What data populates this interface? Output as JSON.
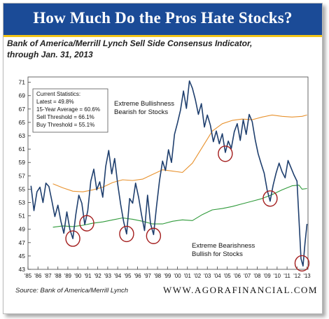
{
  "banner": {
    "title": "How Much Do the Pros Hate Stocks?"
  },
  "subtitle": {
    "line1": "Bank of America/Merrill Lynch Sell Side Consensus Indicator,",
    "line2": "through Jan. 31, 2013"
  },
  "stats_box": {
    "lines": [
      "Current Statistics:",
      "Latest = 49.8%",
      "15-Year Average = 60.6%",
      "Sell Threshold = 66.1%",
      "Buy Threshold = 55.1%"
    ]
  },
  "annotations": {
    "bull_line1": "Extreme Bullishness",
    "bull_line2": "Bearish for Stocks",
    "bear_line1": "Extreme Bearishness",
    "bear_line2": "Bullish for Stocks"
  },
  "footer": {
    "source": "Source: Bank of America/Merrill Lynch",
    "site": "WWW.AGORAFINANCIAL.COM"
  },
  "colors": {
    "banner": "#1b4b97",
    "banner_rule": "#f2c418",
    "indicator": "#1f3f6e",
    "sell_threshold": "#e8922e",
    "buy_threshold": "#2f9a3a",
    "circles": "#a31d1d"
  },
  "chart_data": {
    "type": "line",
    "x_tick_labels": [
      "'85",
      "'86",
      "'87",
      "'88",
      "'89",
      "'90",
      "'91",
      "'92",
      "'93",
      "'94",
      "'95",
      "'96",
      "'97",
      "'98",
      "'99",
      "'00",
      "'01",
      "'02",
      "'03",
      "'04",
      "'05",
      "'06",
      "'07",
      "'08",
      "'09",
      "'10",
      "'11",
      "'12",
      "'13"
    ],
    "y_ticks": [
      43,
      45,
      47,
      49,
      51,
      53,
      55,
      57,
      59,
      61,
      63,
      65,
      67,
      69,
      71
    ],
    "xlim": [
      1985,
      2013.1
    ],
    "ylim": [
      43,
      71.8
    ],
    "grid": false,
    "series": [
      {
        "x": [
          1985.3,
          1985.6,
          1985.9,
          1986.2,
          1986.5,
          1986.8,
          1987.1,
          1987.4,
          1987.7,
          1988.0,
          1988.3,
          1988.6,
          1988.9,
          1989.2,
          1989.5,
          1989.8,
          1990.1,
          1990.4,
          1990.7,
          1991.0,
          1991.3,
          1991.6,
          1991.9,
          1992.2,
          1992.5,
          1992.8,
          1993.1,
          1993.4,
          1993.7,
          1994.0,
          1994.3,
          1994.6,
          1994.9,
          1995.2,
          1995.5,
          1995.8,
          1996.1,
          1996.4,
          1996.7,
          1997.0,
          1997.3,
          1997.6,
          1997.9,
          1998.2,
          1998.5,
          1998.8,
          1999.1,
          1999.4,
          1999.7,
          2000.0,
          2000.3,
          2000.6,
          2000.9,
          2001.2,
          2001.5,
          2001.8,
          2002.1,
          2002.4,
          2002.7,
          2003.0,
          2003.3,
          2003.6,
          2003.9,
          2004.2,
          2004.5,
          2004.8,
          2005.1,
          2005.4,
          2005.7,
          2006.0,
          2006.3,
          2006.6,
          2006.9,
          2007.2,
          2007.5,
          2007.8,
          2008.1,
          2008.4,
          2008.7,
          2009.0,
          2009.3,
          2009.6,
          2009.9,
          2010.2,
          2010.5,
          2010.8,
          2011.1,
          2011.4,
          2011.7,
          2012.0,
          2012.2,
          2012.4,
          2012.6,
          2012.8,
          2013.0
        ],
        "values": [
          55.5,
          51.8,
          54.6,
          55.3,
          53.0,
          55.9,
          55.4,
          53.2,
          50.9,
          52.6,
          50.2,
          48.4,
          51.6,
          49.0,
          47.6,
          51.2,
          54.1,
          52.9,
          49.7,
          51.8,
          56.2,
          58.0,
          54.9,
          56.1,
          53.8,
          58.4,
          60.8,
          57.3,
          59.6,
          55.8,
          52.7,
          50.1,
          48.3,
          53.6,
          52.9,
          55.9,
          53.8,
          51.1,
          48.8,
          54.1,
          49.8,
          48.2,
          52.4,
          56.3,
          59.2,
          57.8,
          60.9,
          59.0,
          63.2,
          64.9,
          66.8,
          69.7,
          67.1,
          71.2,
          70.1,
          68.4,
          66.2,
          67.8,
          64.3,
          66.1,
          64.6,
          62.1,
          63.7,
          61.8,
          63.3,
          60.5,
          62.2,
          61.1,
          63.6,
          64.8,
          62.3,
          65.4,
          63.2,
          66.2,
          65.1,
          62.4,
          60.3,
          58.8,
          57.4,
          54.9,
          53.2,
          55.6,
          57.4,
          58.9,
          57.6,
          56.7,
          59.3,
          58.2,
          57.1,
          56.2,
          50.3,
          44.6,
          43.5,
          46.9,
          49.8
        ]
      },
      {
        "x": [
          1987.5,
          1988.5,
          1989.5,
          1990.5,
          1991.5,
          1992.5,
          1993.5,
          1994.5,
          1995.5,
          1996.5,
          1997.5,
          1998.5,
          1999.5,
          2000.5,
          2001.5,
          2002.5,
          2003.5,
          2004.5,
          2005.5,
          2006.5,
          2007.5,
          2008.5,
          2009.5,
          2010.5,
          2011.5,
          2012.5,
          2013.0
        ],
        "values": [
          55.8,
          55.2,
          54.7,
          54.6,
          54.9,
          55.3,
          56.0,
          56.4,
          56.3,
          56.5,
          57.2,
          57.9,
          57.7,
          57.5,
          58.9,
          61.3,
          63.7,
          64.8,
          65.3,
          65.5,
          65.4,
          65.8,
          66.1,
          65.9,
          65.8,
          65.9,
          66.1
        ]
      },
      {
        "x": [
          1987.5,
          1988.5,
          1989.5,
          1990.5,
          1991.5,
          1992.5,
          1993.5,
          1994.5,
          1995.5,
          1996.5,
          1997.5,
          1998.5,
          1999.5,
          2000.5,
          2001.5,
          2002.5,
          2003.5,
          2004.5,
          2005.5,
          2006.5,
          2007.5,
          2008.5,
          2009.5,
          2010.5,
          2011.5,
          2012.2,
          2012.5,
          2013.0
        ],
        "values": [
          49.3,
          49.5,
          49.4,
          49.6,
          49.9,
          50.1,
          50.4,
          50.7,
          50.5,
          50.2,
          49.8,
          49.8,
          50.2,
          50.4,
          50.3,
          51.2,
          51.9,
          52.1,
          52.4,
          52.8,
          53.2,
          53.6,
          54.2,
          54.9,
          55.5,
          55.6,
          55.0,
          55.1
        ]
      }
    ],
    "circled_points": [
      {
        "x": 1989.5,
        "y": 47.6
      },
      {
        "x": 1990.9,
        "y": 49.9
      },
      {
        "x": 1994.9,
        "y": 48.3
      },
      {
        "x": 1997.6,
        "y": 48.0
      },
      {
        "x": 2004.8,
        "y": 60.3
      },
      {
        "x": 2009.3,
        "y": 53.6
      },
      {
        "x": 2012.5,
        "y": 43.9
      }
    ]
  }
}
